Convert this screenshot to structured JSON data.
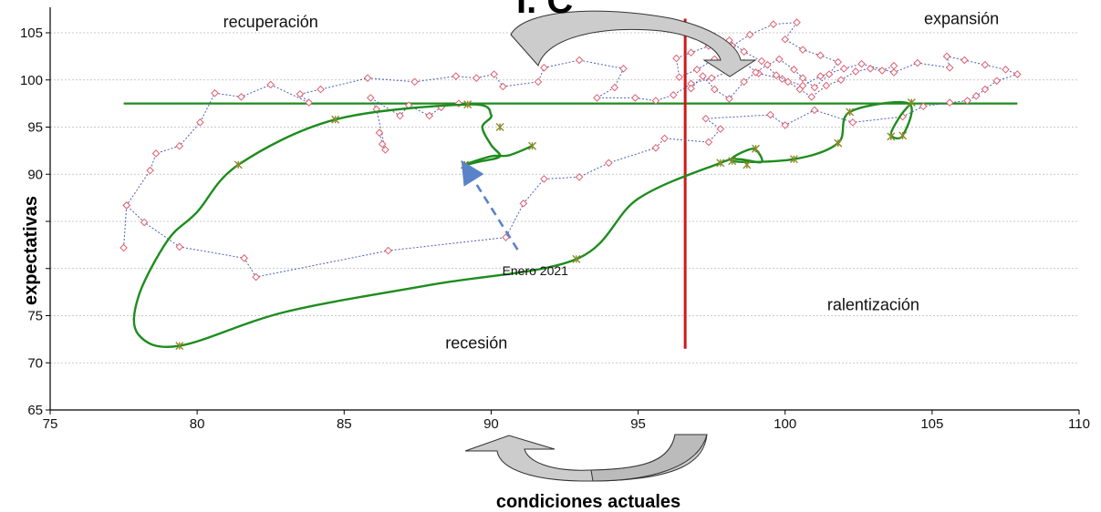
{
  "chart_data": {
    "type": "scatter",
    "title": "",
    "title_fragment": "I. C",
    "xlabel": "condiciones actuales",
    "ylabel": "expectativas",
    "xlim": [
      75,
      110
    ],
    "ylim": [
      65,
      107
    ],
    "x_ticks": [
      75,
      80,
      85,
      90,
      95,
      100,
      105,
      110
    ],
    "y_ticks": [
      65,
      70,
      75,
      80,
      85,
      90,
      95,
      100,
      105
    ],
    "y_tick_labels": [
      "65",
      "70",
      "75",
      "",
      "",
      "90",
      "95",
      "100",
      "105"
    ],
    "grid": "horizontal",
    "colors": {
      "series_history": "#4a5fb5",
      "series_history_marker": "#e06070",
      "series_current": "#1e8c1e",
      "current_marker": "#8a8a2a",
      "reference_h": "#1e8c1e",
      "reference_v": "#d01818",
      "annotation_arrow": "#5a82c8",
      "cycle_arrow_fill": "#cccccc"
    },
    "reference_lines": [
      {
        "orientation": "horizontal",
        "value": 97.5
      },
      {
        "orientation": "vertical",
        "value": 96.6,
        "from": 71.5,
        "to": 106.5
      }
    ],
    "quadrant_labels": [
      {
        "text": "recuperación",
        "x": 82.5,
        "y": 105.6
      },
      {
        "text": "expansión",
        "x": 106,
        "y": 105.9
      },
      {
        "text": "ralentización",
        "x": 103,
        "y": 75.6
      },
      {
        "text": "recesión",
        "x": 89.5,
        "y": 71.5
      }
    ],
    "annotation": {
      "text": "Enero 2021",
      "x": 91.5,
      "y": 79.3,
      "arrow_from": [
        90.9,
        82.0
      ],
      "arrow_to": [
        89.2,
        91.0
      ]
    },
    "series": [
      {
        "style": "dotted-diamond",
        "points": [
          [
            77.5,
            82.2
          ],
          [
            77.6,
            86.7
          ],
          [
            78.2,
            84.9
          ],
          [
            79.4,
            82.3
          ],
          [
            81.6,
            81.1
          ],
          [
            82.0,
            79.1
          ],
          [
            86.5,
            81.9
          ],
          [
            90.5,
            83.3
          ],
          [
            91.1,
            86.9
          ],
          [
            91.8,
            89.5
          ],
          [
            93.0,
            89.7
          ],
          [
            94.0,
            91.2
          ],
          [
            95.6,
            92.8
          ],
          [
            95.9,
            93.8
          ],
          [
            97.4,
            93.4
          ],
          [
            97.8,
            94.8
          ],
          [
            97.3,
            95.9
          ],
          [
            99.5,
            96.3
          ],
          [
            100.0,
            95.2
          ],
          [
            101.0,
            96.8
          ],
          [
            102.3,
            95.5
          ],
          [
            104.0,
            96.1
          ],
          [
            104.7,
            97.2
          ],
          [
            105.6,
            97.6
          ],
          [
            106.2,
            97.8
          ],
          [
            106.5,
            98.3
          ],
          [
            106.8,
            99.0
          ],
          [
            107.2,
            99.9
          ],
          [
            107.9,
            100.6
          ],
          [
            107.5,
            101.1
          ],
          [
            106.8,
            101.6
          ],
          [
            106.1,
            102.1
          ],
          [
            105.5,
            102.5
          ],
          [
            105.6,
            101.3
          ],
          [
            104.5,
            101.8
          ],
          [
            103.7,
            100.8
          ],
          [
            102.6,
            101.7
          ],
          [
            102.0,
            101.2
          ],
          [
            101.2,
            100.4
          ],
          [
            100.6,
            99.4
          ],
          [
            99.9,
            100.1
          ],
          [
            99.1,
            100.7
          ],
          [
            98.6,
            101.8
          ],
          [
            98.1,
            100.9
          ],
          [
            97.5,
            100.2
          ],
          [
            96.8,
            99.6
          ],
          [
            96.2,
            98.4
          ],
          [
            95.6,
            97.8
          ],
          [
            94.9,
            98.1
          ],
          [
            93.6,
            98.1
          ],
          [
            94.2,
            99.2
          ],
          [
            94.5,
            101.2
          ],
          [
            93.0,
            102.1
          ],
          [
            91.8,
            101.3
          ],
          [
            91.6,
            99.8
          ],
          [
            90.4,
            99.3
          ],
          [
            90.1,
            100.6
          ],
          [
            89.5,
            100.2
          ],
          [
            88.8,
            100.4
          ],
          [
            87.4,
            99.8
          ],
          [
            85.8,
            100.2
          ],
          [
            84.2,
            99.0
          ],
          [
            83.5,
            98.5
          ],
          [
            83.8,
            97.6
          ],
          [
            82.5,
            99.5
          ],
          [
            81.5,
            98.2
          ],
          [
            80.6,
            98.6
          ],
          [
            80.1,
            95.5
          ],
          [
            79.4,
            93.0
          ],
          [
            78.6,
            92.2
          ],
          [
            78.4,
            90.4
          ],
          [
            77.6,
            86.7
          ]
        ]
      },
      {
        "style": "dotted-diamond",
        "points": [
          [
            96.8,
            99.1
          ],
          [
            97.2,
            100.4
          ],
          [
            97.6,
            99.0
          ],
          [
            98.1,
            98.0
          ],
          [
            98.6,
            99.8
          ],
          [
            99.0,
            100.8
          ],
          [
            99.4,
            101.6
          ],
          [
            99.8,
            102.2
          ],
          [
            100.3,
            101.1
          ],
          [
            100.6,
            100.2
          ],
          [
            101.0,
            99.2
          ],
          [
            101.5,
            100.6
          ],
          [
            101.8,
            101.9
          ],
          [
            101.2,
            102.6
          ],
          [
            100.6,
            103.2
          ],
          [
            100.0,
            104.3
          ],
          [
            100.4,
            106.1
          ],
          [
            99.6,
            105.9
          ],
          [
            98.8,
            104.8
          ],
          [
            98.2,
            103.6
          ],
          [
            97.6,
            102.2
          ],
          [
            97.0,
            101.1
          ],
          [
            96.4,
            100.3
          ],
          [
            96.3,
            102.3
          ],
          [
            96.8,
            102.9
          ],
          [
            97.4,
            103.6
          ],
          [
            98.1,
            104.2
          ],
          [
            98.6,
            103.0
          ],
          [
            99.2,
            102.0
          ],
          [
            99.7,
            100.5
          ],
          [
            100.1,
            99.8
          ],
          [
            100.5,
            99.0
          ],
          [
            100.9,
            98.2
          ],
          [
            101.4,
            99.4
          ],
          [
            101.9,
            100.0
          ],
          [
            102.4,
            100.9
          ],
          [
            102.9,
            101.2
          ],
          [
            103.3,
            101.0
          ],
          [
            103.7,
            101.5
          ]
        ]
      },
      {
        "style": "dotted-diamond",
        "points": [
          [
            86.2,
            94.4
          ],
          [
            86.3,
            93.2
          ],
          [
            86.4,
            92.6
          ],
          [
            86.1,
            96.9
          ],
          [
            85.9,
            98.1
          ],
          [
            86.9,
            96.2
          ],
          [
            87.2,
            97.3
          ],
          [
            87.9,
            96.2
          ],
          [
            88.3,
            97.1
          ],
          [
            88.9,
            97.5
          ]
        ]
      },
      {
        "style": "solid-curve",
        "points": [
          [
            104.3,
            97.6
          ],
          [
            103.9,
            96.1
          ],
          [
            103.6,
            94.2
          ],
          [
            104.0,
            94.1
          ],
          [
            104.2,
            97.5
          ],
          [
            102.2,
            96.6
          ],
          [
            101.8,
            93.3
          ],
          [
            100.3,
            91.6
          ],
          [
            98.2,
            91.4
          ],
          [
            98.9,
            92.7
          ],
          [
            99.2,
            91.3
          ],
          [
            98.4,
            91.6
          ],
          [
            97.8,
            91.2
          ],
          [
            95.0,
            87.4
          ],
          [
            92.9,
            81.0
          ],
          [
            88.0,
            78.3
          ],
          [
            83.0,
            75.4
          ],
          [
            79.4,
            71.8
          ],
          [
            78.0,
            73.0
          ],
          [
            78.0,
            77.0
          ],
          [
            79.0,
            83.0
          ],
          [
            80.0,
            86.0
          ],
          [
            81.4,
            91.0
          ],
          [
            84.7,
            95.8
          ],
          [
            89.2,
            97.4
          ],
          [
            90.0,
            96.3
          ],
          [
            89.7,
            95.0
          ],
          [
            90.0,
            93.1
          ],
          [
            90.3,
            91.9
          ],
          [
            89.7,
            91.4
          ],
          [
            89.1,
            91.0
          ],
          [
            90.0,
            91.9
          ],
          [
            90.6,
            92.0
          ],
          [
            91.4,
            93.0
          ]
        ]
      }
    ],
    "current_points": [
      [
        79.4,
        71.8
      ],
      [
        81.4,
        91.0
      ],
      [
        84.7,
        95.8
      ],
      [
        89.2,
        97.4
      ],
      [
        90.3,
        95.0
      ],
      [
        89.1,
        91.0
      ],
      [
        91.4,
        93.0
      ],
      [
        92.9,
        81.0
      ],
      [
        97.8,
        91.2
      ],
      [
        98.2,
        91.4
      ],
      [
        98.7,
        91.0
      ],
      [
        99.0,
        92.7
      ],
      [
        100.3,
        91.6
      ],
      [
        101.8,
        93.3
      ],
      [
        102.2,
        96.6
      ],
      [
        103.6,
        94.0
      ],
      [
        104.0,
        94.1
      ],
      [
        104.3,
        97.6
      ]
    ]
  }
}
